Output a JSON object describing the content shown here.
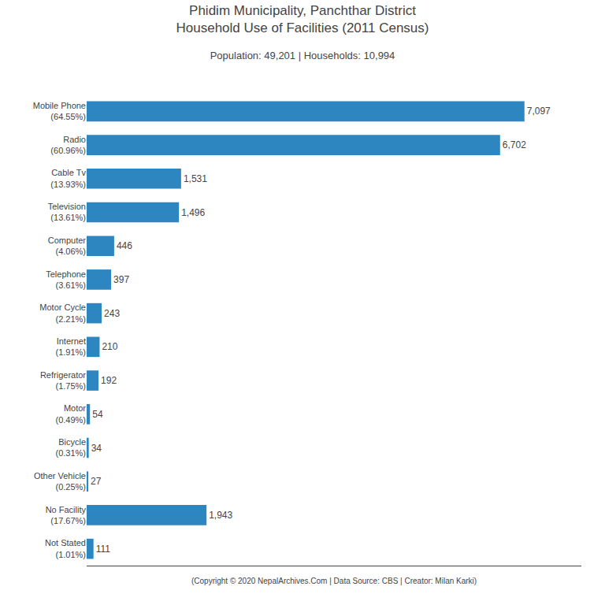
{
  "chart_data": {
    "type": "bar",
    "orientation": "horizontal",
    "title": "Phidim Municipality, Panchthar District\nHousehold Use of Facilities (2011 Census)",
    "subtitle": "Population: 49,201 | Households: 10,994",
    "annotations": [
      "(Copyright © 2020 NepalArchives.Com | Data Source: CBS | Creator: Milan Karki)"
    ],
    "categories": [
      "Mobile Phone\n(64.55%)",
      "Radio\n(60.96%)",
      "Cable Tv\n(13.93%)",
      "Television\n(13.61%)",
      "Computer\n(4.06%)",
      "Telephone\n(3.61%)",
      "Motor Cycle\n(2.21%)",
      "Internet\n(1.91%)",
      "Refrigerator\n(1.75%)",
      "Motor\n(0.49%)",
      "Bicycle\n(0.31%)",
      "Other Vehicle\n(0.25%)",
      "No Facility\n(17.67%)",
      "Not Stated\n(1.01%)"
    ],
    "values": [
      7097,
      6702,
      1531,
      1496,
      446,
      397,
      243,
      210,
      192,
      54,
      34,
      27,
      1943,
      111
    ],
    "value_labels": [
      "7,097",
      "6,702",
      "1,531",
      "1,496",
      "446",
      "397",
      "243",
      "210",
      "192",
      "54",
      "34",
      "27",
      "1,943",
      "111"
    ],
    "data_labels": true,
    "color": "#2E86C1",
    "xlim": [
      0,
      8019.61
    ],
    "tick_labels": "y",
    "grid": false
  }
}
